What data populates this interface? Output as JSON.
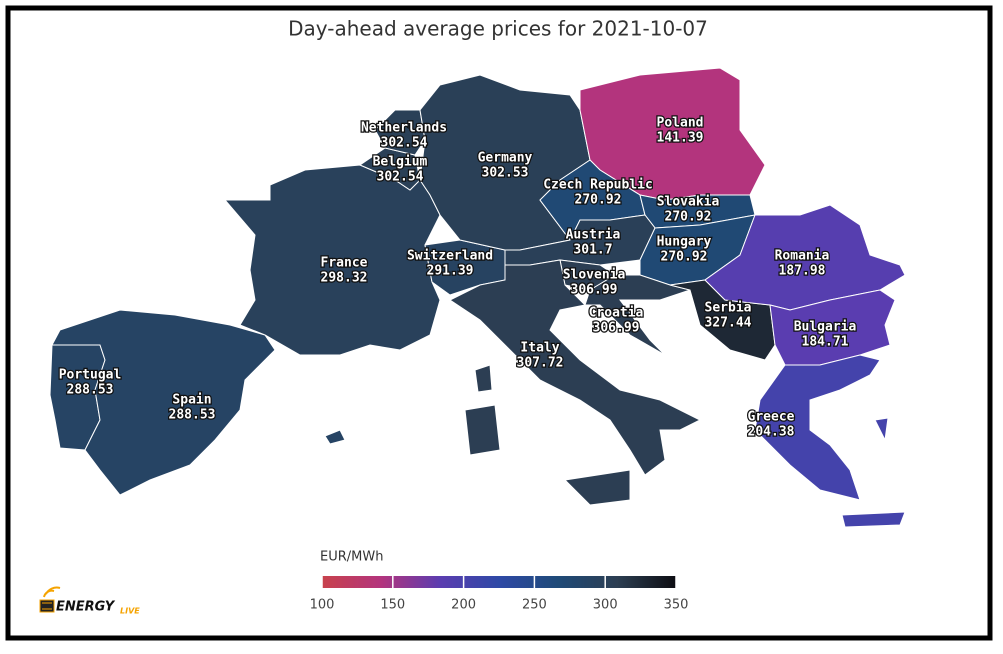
{
  "chart_data": {
    "type": "choropleth",
    "title": "Day-ahead average prices for 2021-10-07",
    "colorbar_label": "EUR/MWh",
    "clim": [
      100,
      350
    ],
    "cticks": [
      100,
      150,
      200,
      250,
      300,
      350
    ],
    "colors": [
      "#c8424c",
      "#b3347d",
      "#5b3db0",
      "#2e49a6",
      "#1f4a78",
      "#2c3e52",
      "#0d0d12"
    ],
    "regions": [
      {
        "name": "Portugal",
        "value": 288.53
      },
      {
        "name": "Spain",
        "value": 288.53
      },
      {
        "name": "France",
        "value": 298.32
      },
      {
        "name": "Switzerland",
        "value": 291.39
      },
      {
        "name": "Belgium",
        "value": 302.54
      },
      {
        "name": "Netherlands",
        "value": 302.54
      },
      {
        "name": "Germany",
        "value": 302.53
      },
      {
        "name": "Poland",
        "value": 141.39
      },
      {
        "name": "Czech Republic",
        "value": 270.92
      },
      {
        "name": "Slovakia",
        "value": 270.92
      },
      {
        "name": "Austria",
        "value": 301.7
      },
      {
        "name": "Hungary",
        "value": 270.92
      },
      {
        "name": "Slovenia",
        "value": 306.99
      },
      {
        "name": "Croatia",
        "value": 306.99
      },
      {
        "name": "Serbia",
        "value": 327.44
      },
      {
        "name": "Romania",
        "value": 187.98
      },
      {
        "name": "Bulgaria",
        "value": 184.71
      },
      {
        "name": "Greece",
        "value": 204.38
      },
      {
        "name": "Italy",
        "value": 307.72
      }
    ]
  },
  "logo": {
    "text": "ENERGY",
    "suffix": "LIVE"
  }
}
